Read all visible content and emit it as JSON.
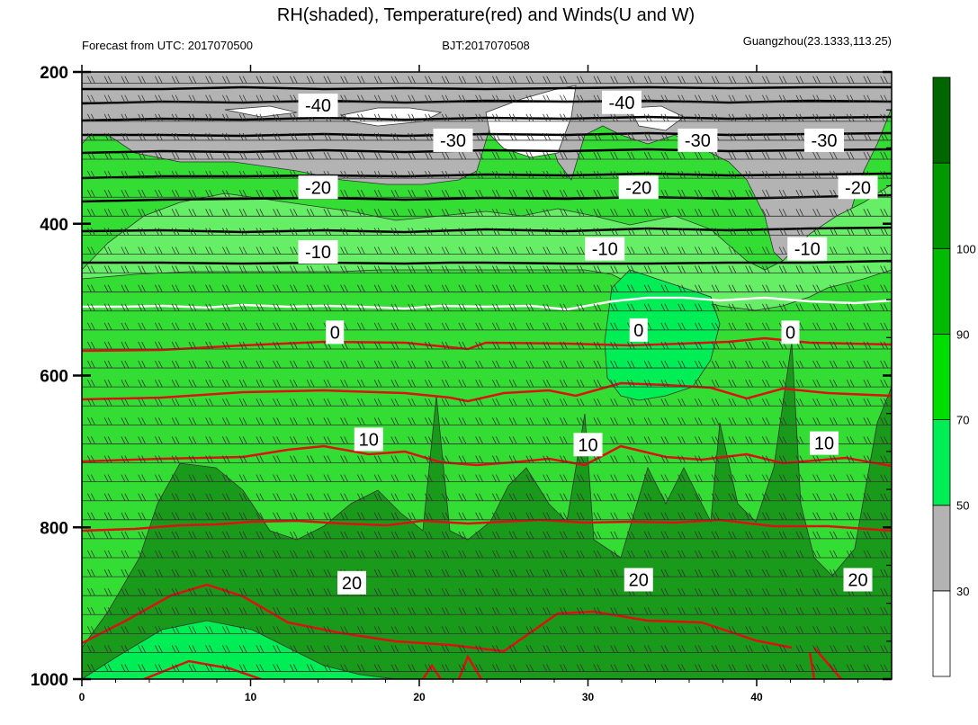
{
  "header": {
    "title": "RH(shaded), Temperature(red) and Winds(U and W)",
    "left_info": "Forecast from UTC: 2017070500",
    "center_info": "BJT:2017070508",
    "right_info": "Guangzhou(23.1333,113.25)"
  },
  "chart_data": {
    "type": "heatmap",
    "title": "RH(shaded), Temperature(red) and Winds(U and W)",
    "xlim": [
      0,
      48
    ],
    "ylim_pressure": [
      1000,
      200
    ],
    "x_ticks": [
      0,
      10,
      20,
      30,
      40
    ],
    "x_tick_labels": [
      "0",
      "10",
      "20",
      "30",
      "40"
    ],
    "y_ticks": [
      200,
      400,
      600,
      800,
      1000
    ],
    "y_tick_labels": [
      "200",
      "400",
      "600",
      "800",
      "1000"
    ],
    "grid": false,
    "rh_colorbar": {
      "levels": [
        0,
        30,
        50,
        70,
        90,
        100,
        110
      ],
      "labels": [
        "30",
        "50",
        "70",
        "90",
        "100"
      ],
      "colors": [
        "#ffffff",
        "#b3b3b3",
        "#00ee55",
        "#00dd00",
        "#00bb00",
        "#009900",
        "#006600"
      ]
    },
    "rh_field_colors": {
      "very_dry": "#ffffff",
      "dry": "#b3b3b3",
      "moist": "#66ee66",
      "humid": "#33dd33",
      "wet": "#22bb22",
      "saturated": "#1a9a1a",
      "pocket": "#00ee55"
    },
    "temperature_contours": [
      {
        "value": -40,
        "pressure": 250,
        "color": "#000000"
      },
      {
        "value": -30,
        "pressure": 295,
        "color": "#000000"
      },
      {
        "value": -20,
        "pressure": 350,
        "color": "#000000"
      },
      {
        "value": -10,
        "pressure": 430,
        "color": "#000000"
      },
      {
        "value": 0,
        "pressure": 545,
        "color": "#ffffff"
      },
      {
        "value": 10,
        "pressure": 685,
        "color": "#dd1111"
      },
      {
        "value": 20,
        "pressure": 870,
        "color": "#dd1111"
      }
    ],
    "contour_labels": [
      {
        "text": "-40",
        "x": 14,
        "p": 244
      },
      {
        "text": "-40",
        "x": 32,
        "p": 240
      },
      {
        "text": "-30",
        "x": 22,
        "p": 290
      },
      {
        "text": "-30",
        "x": 36.5,
        "p": 290
      },
      {
        "text": "-30",
        "x": 44,
        "p": 290
      },
      {
        "text": "-20",
        "x": 14,
        "p": 352
      },
      {
        "text": "-20",
        "x": 33,
        "p": 352
      },
      {
        "text": "-20",
        "x": 46,
        "p": 352
      },
      {
        "text": "-10",
        "x": 14,
        "p": 437
      },
      {
        "text": "-10",
        "x": 31,
        "p": 433
      },
      {
        "text": "-10",
        "x": 43,
        "p": 433
      },
      {
        "text": "0",
        "x": 15,
        "p": 543
      },
      {
        "text": "0",
        "x": 33,
        "p": 540
      },
      {
        "text": "0",
        "x": 42,
        "p": 543
      },
      {
        "text": "10",
        "x": 17,
        "p": 684
      },
      {
        "text": "10",
        "x": 30,
        "p": 691
      },
      {
        "text": "10",
        "x": 44,
        "p": 689
      },
      {
        "text": "20",
        "x": 16,
        "p": 873
      },
      {
        "text": "20",
        "x": 33,
        "p": 869
      },
      {
        "text": "20",
        "x": 46,
        "p": 869
      }
    ]
  }
}
